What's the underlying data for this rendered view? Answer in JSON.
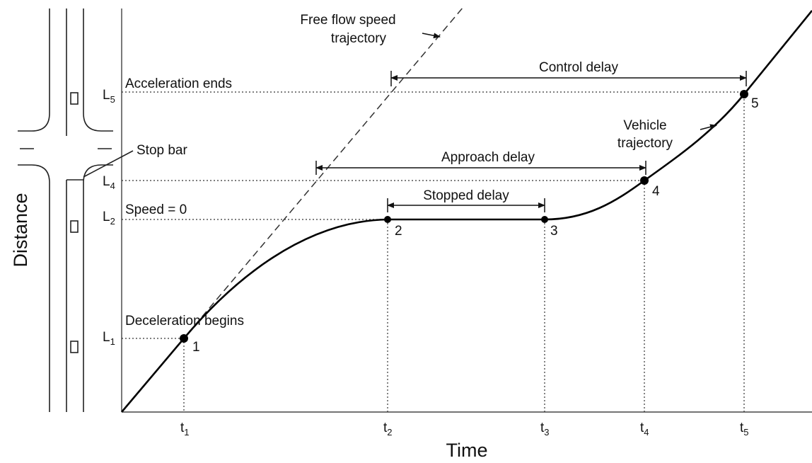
{
  "axes": {
    "y_label": "Distance",
    "x_label": "Time"
  },
  "free_flow": {
    "lines": [
      "Free flow speed",
      "trajectory"
    ]
  },
  "vehicle_trajectory": {
    "lines": [
      "Vehicle",
      "trajectory"
    ]
  },
  "stop_bar": "Stop bar",
  "events": {
    "acceleration_ends": "Acceleration ends",
    "speed_zero": "Speed = 0",
    "deceleration_begins": "Deceleration begins"
  },
  "delays": {
    "control": "Control delay",
    "approach": "Approach delay",
    "stopped": "Stopped delay"
  },
  "distance_labels": [
    {
      "base": "L",
      "sub": "5"
    },
    {
      "base": "L",
      "sub": "4"
    },
    {
      "base": "L",
      "sub": "2"
    },
    {
      "base": "L",
      "sub": "1"
    }
  ],
  "time_labels": [
    {
      "base": "t",
      "sub": "1"
    },
    {
      "base": "t",
      "sub": "2"
    },
    {
      "base": "t",
      "sub": "3"
    },
    {
      "base": "t",
      "sub": "4"
    },
    {
      "base": "t",
      "sub": "5"
    }
  ],
  "points": [
    "1",
    "2",
    "3",
    "4",
    "5"
  ]
}
